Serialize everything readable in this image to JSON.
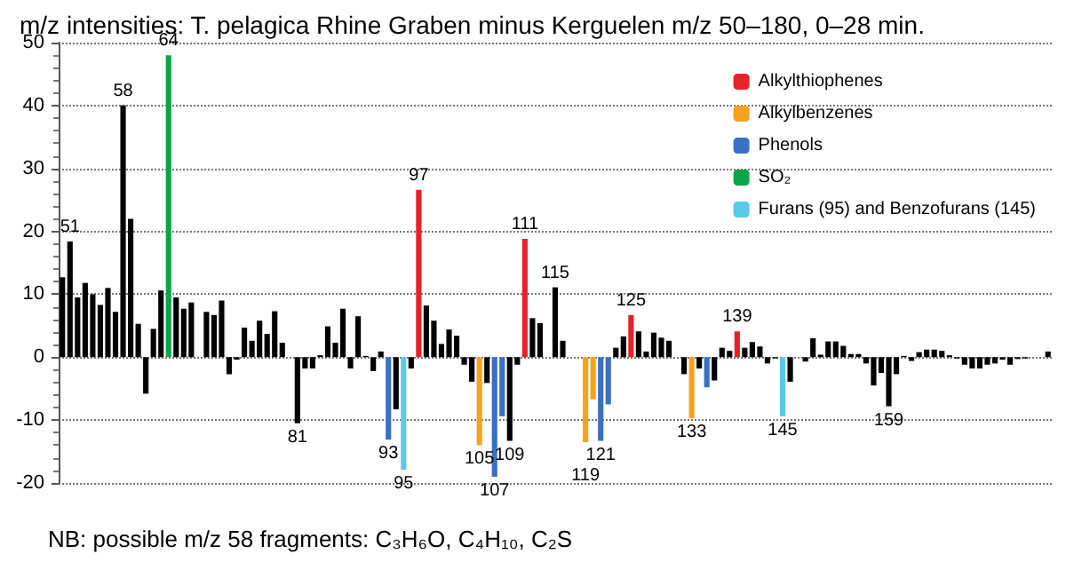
{
  "chart_data": {
    "type": "bar",
    "title": "m/z intensities: T. pelagica Rhine Graben minus Kerguelen m/z 50–180, 0–28 min.",
    "annotations": [
      "NB: possible m/z 58 fragments: C₃H₆O, C₄H₁₀, C₂S"
    ],
    "categories": [
      null,
      null,
      null,
      null,
      null,
      null,
      null,
      null,
      null,
      null,
      null,
      null,
      null,
      null,
      null,
      null,
      null,
      null,
      null,
      null,
      null,
      null,
      null,
      null,
      null,
      null,
      null,
      null,
      null,
      null,
      null,
      null,
      null,
      null,
      null,
      null,
      null,
      null,
      null,
      null,
      null,
      null,
      null,
      null,
      null,
      null,
      null,
      null,
      null,
      null,
      null,
      null,
      null,
      null,
      null,
      null,
      null,
      null,
      null,
      null,
      null,
      null,
      null,
      null,
      null,
      null,
      null,
      null,
      null,
      null,
      null,
      null,
      null,
      null,
      null,
      null,
      null,
      null,
      null,
      null,
      null,
      null,
      null,
      null,
      null,
      null,
      null,
      null,
      null,
      null,
      null,
      null,
      null,
      null,
      null,
      null,
      null,
      null,
      null,
      null,
      null,
      null,
      null,
      null,
      null,
      null,
      null,
      null,
      null,
      null,
      null,
      null,
      null,
      null,
      null,
      null,
      null,
      null,
      null,
      null,
      null,
      null,
      null,
      null,
      null,
      null,
      null,
      null,
      null,
      null,
      null
    ],
    "series": [
      {
        "color": "#000000",
        "values": [
          12.7,
          18.4,
          9.5,
          11.8,
          10,
          8.3,
          11,
          7.2,
          40,
          22,
          5.3,
          -5.8,
          4.5,
          10.6,
          null,
          9.5,
          7.7,
          8.7,
          null,
          7.2,
          6.7,
          9,
          -2.7,
          -0.4,
          4.7,
          2.6,
          5.8,
          3.7,
          7.3,
          2.3,
          null,
          -10.5,
          -1.8,
          -1.8,
          0.3,
          4.9,
          2.3,
          7.7,
          -1.8,
          6.5,
          0.2,
          -2.2,
          0.9,
          null,
          -8.3,
          null,
          -1.8,
          null,
          8.2,
          5.8,
          2.1,
          4.4,
          3.4,
          -1.2,
          -3.9,
          null,
          -4.1,
          null,
          null,
          -13.3,
          -1.2,
          null,
          6.2,
          5.4,
          null,
          11.1,
          2.6,
          null,
          null,
          null,
          null,
          null,
          null,
          1.5,
          3.3,
          null,
          4.1,
          0.9,
          3.9,
          3.1,
          2.6,
          null,
          -2.7,
          null,
          -1.8,
          null,
          -3.7,
          1.5,
          1.0,
          null,
          1.5,
          2.4,
          1.7,
          -1.0,
          -0.2,
          null,
          -3.9,
          null,
          -0.7,
          3.0,
          0.4,
          2.5,
          2.5,
          1.8,
          0.5,
          0.5,
          -1.0,
          -4.5,
          -2.5,
          -7.8,
          -2.7,
          0.2,
          -0.6,
          0.8,
          1.2,
          1.2,
          1.0,
          0.3,
          -0.2,
          -1.2,
          -1.8,
          -1.8,
          -1.2,
          -1.0,
          -0.4,
          -1.2,
          -0.3,
          -0.2,
          null,
          null,
          0.9
        ]
      },
      {
        "name": "Alkylthiophenes",
        "color": "#e8202a",
        "values": [
          null,
          null,
          null,
          null,
          null,
          null,
          null,
          null,
          null,
          null,
          null,
          null,
          null,
          null,
          null,
          null,
          null,
          null,
          null,
          null,
          null,
          null,
          null,
          null,
          null,
          null,
          null,
          null,
          null,
          null,
          null,
          null,
          null,
          null,
          null,
          null,
          null,
          null,
          null,
          null,
          null,
          null,
          null,
          null,
          null,
          null,
          null,
          26.6,
          null,
          null,
          null,
          null,
          null,
          null,
          null,
          null,
          null,
          null,
          null,
          null,
          null,
          18.8,
          null,
          null,
          null,
          null,
          null,
          null,
          null,
          null,
          null,
          null,
          null,
          null,
          null,
          6.7,
          null,
          null,
          null,
          null,
          null,
          null,
          null,
          null,
          null,
          null,
          null,
          null,
          null,
          4.1,
          null,
          null,
          null,
          null,
          null,
          null,
          null,
          null,
          null,
          null,
          null,
          null,
          null,
          null,
          null,
          null,
          null,
          null,
          null,
          null,
          null,
          null,
          null,
          null,
          null,
          null,
          null,
          null,
          null,
          null,
          null,
          null,
          null,
          null,
          null,
          null,
          null,
          null,
          null,
          null,
          null
        ]
      },
      {
        "name": "Alkylbenzenes",
        "color": "#f7a21b",
        "values": [
          null,
          null,
          null,
          null,
          null,
          null,
          null,
          null,
          null,
          null,
          null,
          null,
          null,
          null,
          null,
          null,
          null,
          null,
          null,
          null,
          null,
          null,
          null,
          null,
          null,
          null,
          null,
          null,
          null,
          null,
          null,
          null,
          null,
          null,
          null,
          null,
          null,
          null,
          null,
          null,
          null,
          null,
          null,
          null,
          null,
          null,
          null,
          null,
          null,
          null,
          null,
          null,
          null,
          null,
          null,
          -14,
          null,
          null,
          null,
          null,
          null,
          null,
          null,
          null,
          null,
          null,
          null,
          null,
          null,
          -13.5,
          -6.7,
          null,
          null,
          null,
          null,
          null,
          null,
          null,
          null,
          null,
          null,
          null,
          null,
          -9.7,
          null,
          null,
          null,
          null,
          null,
          null,
          null,
          null,
          null,
          null,
          null,
          null,
          null,
          null,
          null,
          null,
          null,
          null,
          null,
          null,
          null,
          null,
          null,
          null,
          null,
          null,
          null,
          null,
          null,
          null,
          null,
          null,
          null,
          null,
          null,
          null,
          null,
          null,
          null,
          null,
          null,
          null,
          null,
          null,
          null,
          null,
          null
        ]
      },
      {
        "name": "Phenols",
        "color": "#3a6fc4",
        "values": [
          null,
          null,
          null,
          null,
          null,
          null,
          null,
          null,
          null,
          null,
          null,
          null,
          null,
          null,
          null,
          null,
          null,
          null,
          null,
          null,
          null,
          null,
          null,
          null,
          null,
          null,
          null,
          null,
          null,
          null,
          null,
          null,
          null,
          null,
          null,
          null,
          null,
          null,
          null,
          null,
          null,
          null,
          null,
          -13.1,
          null,
          null,
          null,
          null,
          null,
          null,
          null,
          null,
          null,
          null,
          null,
          null,
          null,
          -19,
          -9.4,
          null,
          null,
          null,
          null,
          null,
          null,
          null,
          null,
          null,
          null,
          null,
          null,
          -13.3,
          -7.5,
          null,
          null,
          null,
          null,
          null,
          null,
          null,
          null,
          null,
          null,
          null,
          null,
          -4.8,
          null,
          null,
          null,
          null,
          null,
          null,
          null,
          null,
          null,
          null,
          null,
          null,
          null,
          null,
          null,
          null,
          null,
          null,
          null,
          null,
          null,
          null,
          null,
          null,
          null,
          null,
          null,
          null,
          null,
          null,
          null,
          null,
          null,
          null,
          null,
          null,
          null,
          null,
          null,
          null,
          null,
          null,
          null,
          null,
          null
        ]
      },
      {
        "name": "SO₂",
        "color": "#0ca44a",
        "values": [
          null,
          null,
          null,
          null,
          null,
          null,
          null,
          null,
          null,
          null,
          null,
          null,
          null,
          null,
          48,
          null,
          null,
          null,
          null,
          null,
          null,
          null,
          null,
          null,
          null,
          null,
          null,
          null,
          null,
          null,
          null,
          null,
          null,
          null,
          null,
          null,
          null,
          null,
          null,
          null,
          null,
          null,
          null,
          null,
          null,
          null,
          null,
          null,
          null,
          null,
          null,
          null,
          null,
          null,
          null,
          null,
          null,
          null,
          null,
          null,
          null,
          null,
          null,
          null,
          null,
          null,
          null,
          null,
          null,
          null,
          null,
          null,
          null,
          null,
          null,
          null,
          null,
          null,
          null,
          null,
          null,
          null,
          null,
          null,
          null,
          null,
          null,
          null,
          null,
          null,
          null,
          null,
          null,
          null,
          null,
          null,
          null,
          null,
          null,
          null,
          null,
          null,
          null,
          null,
          null,
          null,
          null,
          null,
          null,
          null,
          null,
          null,
          null,
          null,
          null,
          null,
          null,
          null,
          null,
          null,
          null,
          null,
          null,
          null,
          null,
          null,
          null,
          null,
          null,
          null,
          null
        ]
      },
      {
        "name": "Furans (95) and Benzofurans (145)",
        "color": "#5bc8ea",
        "values": [
          null,
          null,
          null,
          null,
          null,
          null,
          null,
          null,
          null,
          null,
          null,
          null,
          null,
          null,
          null,
          null,
          null,
          null,
          null,
          null,
          null,
          null,
          null,
          null,
          null,
          null,
          null,
          null,
          null,
          null,
          null,
          null,
          null,
          null,
          null,
          null,
          null,
          null,
          null,
          null,
          null,
          null,
          null,
          null,
          null,
          -17.9,
          null,
          null,
          null,
          null,
          null,
          null,
          null,
          null,
          null,
          null,
          null,
          null,
          null,
          null,
          null,
          null,
          null,
          null,
          null,
          null,
          null,
          null,
          null,
          null,
          null,
          null,
          null,
          null,
          null,
          null,
          null,
          null,
          null,
          null,
          null,
          null,
          null,
          null,
          null,
          null,
          null,
          null,
          null,
          null,
          null,
          null,
          null,
          null,
          null,
          -9.4,
          null,
          null,
          null,
          null,
          null,
          null,
          null,
          null,
          null,
          null,
          null,
          null,
          null,
          null,
          null,
          null,
          null,
          null,
          null,
          null,
          null,
          null,
          null,
          null,
          null,
          null,
          null,
          null,
          null,
          null,
          null,
          null,
          null,
          null,
          null
        ]
      }
    ],
    "value_labels": [
      null,
      "51",
      null,
      null,
      null,
      null,
      null,
      null,
      "58",
      null,
      null,
      null,
      null,
      null,
      "64",
      null,
      null,
      null,
      null,
      null,
      null,
      null,
      null,
      null,
      null,
      null,
      null,
      null,
      null,
      null,
      null,
      "81",
      null,
      null,
      null,
      null,
      null,
      null,
      null,
      null,
      null,
      null,
      null,
      "93",
      null,
      "95",
      null,
      "97",
      null,
      null,
      null,
      null,
      null,
      null,
      null,
      "105",
      null,
      "107",
      null,
      "109",
      null,
      "111",
      null,
      null,
      null,
      "115",
      null,
      null,
      null,
      "119",
      null,
      "121",
      null,
      null,
      null,
      "125",
      null,
      null,
      null,
      null,
      null,
      null,
      null,
      "133",
      null,
      null,
      null,
      null,
      null,
      "139",
      null,
      null,
      null,
      null,
      null,
      "145",
      null,
      null,
      null,
      null,
      null,
      null,
      null,
      null,
      null,
      null,
      null,
      null,
      null,
      "159",
      null,
      null,
      null,
      null,
      null,
      null,
      null,
      null,
      null,
      null,
      null,
      null,
      null,
      null,
      null,
      null,
      null,
      null,
      null,
      null,
      null
    ],
    "ylim": [
      -20,
      50
    ],
    "yticks": [
      -20,
      -10,
      0,
      10,
      20,
      30,
      40,
      50
    ],
    "grid": "y",
    "legend": "top right",
    "tick_labels": "y"
  }
}
